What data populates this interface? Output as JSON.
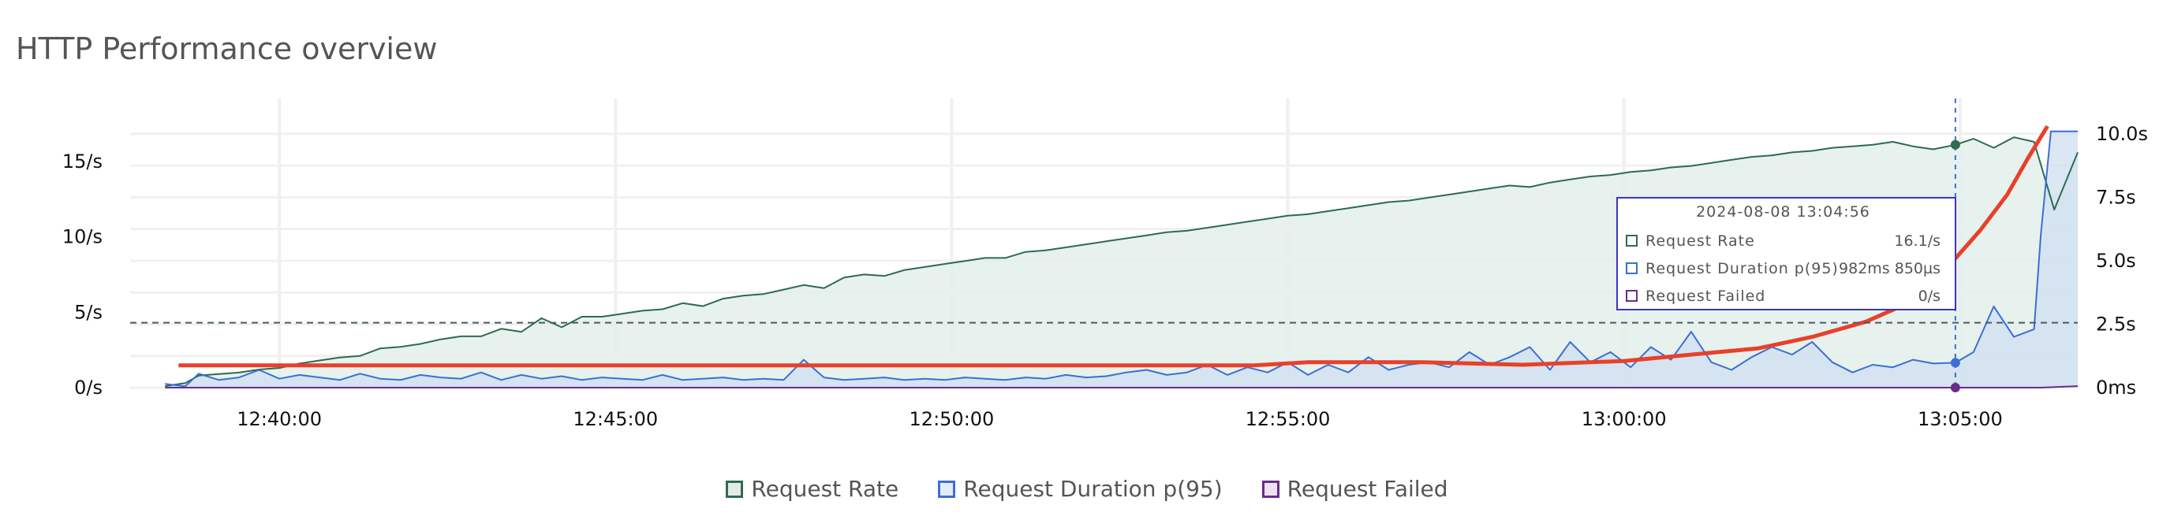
{
  "page": {
    "title": "HTTP Performance overview"
  },
  "legend": [
    {
      "label": "Request Rate",
      "color": "#2e6b4f"
    },
    {
      "label": "Request Duration p(95)",
      "color": "#3b6fd4"
    },
    {
      "label": "Request Failed",
      "color": "#6a2c8a"
    }
  ],
  "tooltip": {
    "timestamp": "2024-08-08 13:04:56",
    "rows": [
      {
        "label": "Request Rate",
        "value": "16.1/s",
        "color": "#2e6b4f"
      },
      {
        "label": "Request Duration p(95)",
        "value": "982ms 850µs",
        "color": "#3b6fd4"
      },
      {
        "label": "Request Failed",
        "value": "0/s",
        "color": "#6a2c8a"
      }
    ]
  },
  "chart_data": {
    "type": "area",
    "x_ticks": [
      "12:40:00",
      "12:45:00",
      "12:50:00",
      "12:55:00",
      "13:00:00",
      "13:05:00"
    ],
    "y_left_ticks": [
      "0/s",
      "5/s",
      "10/s",
      "15/s"
    ],
    "y_right_ticks": [
      "0ms",
      "2.5s",
      "5.0s",
      "7.5s",
      "10.0s"
    ],
    "y_left_range": [
      0,
      17.5
    ],
    "y_right_range": [
      0,
      10.4
    ],
    "x_range_minutes": [
      -1.75,
      26.75
    ],
    "x_origin": "12:40:00",
    "threshold_left": 4.3,
    "hover_time_minutes": 24.93,
    "series": [
      {
        "name": "Request Rate",
        "color": "#2e6b4f",
        "fill": "#e3efea",
        "axis": "left",
        "x": [
          -1.7,
          -1.4,
          -1.2,
          -0.9,
          -0.6,
          -0.3,
          0,
          0.3,
          0.6,
          0.9,
          1.2,
          1.5,
          1.8,
          2.1,
          2.4,
          2.7,
          3.0,
          3.3,
          3.6,
          3.9,
          4.2,
          4.5,
          4.8,
          5.1,
          5.4,
          5.7,
          6.0,
          6.3,
          6.6,
          6.9,
          7.2,
          7.5,
          7.8,
          8.1,
          8.4,
          8.7,
          9.0,
          9.3,
          9.6,
          9.9,
          10.2,
          10.5,
          10.8,
          11.1,
          11.4,
          11.7,
          12.0,
          12.3,
          12.6,
          12.9,
          13.2,
          13.5,
          13.8,
          14.1,
          14.4,
          14.7,
          15.0,
          15.3,
          15.6,
          15.9,
          16.2,
          16.5,
          16.8,
          17.1,
          17.4,
          17.7,
          18.0,
          18.3,
          18.6,
          18.9,
          19.2,
          19.5,
          19.8,
          20.1,
          20.4,
          20.7,
          21.0,
          21.3,
          21.6,
          21.9,
          22.2,
          22.5,
          22.8,
          23.1,
          23.4,
          23.7,
          24.0,
          24.3,
          24.6,
          24.93,
          25.2,
          25.5,
          25.8,
          26.1,
          26.4,
          26.75
        ],
        "values": [
          0.1,
          0.3,
          0.8,
          0.9,
          1.0,
          1.2,
          1.3,
          1.6,
          1.8,
          2.0,
          2.1,
          2.6,
          2.7,
          2.9,
          3.2,
          3.4,
          3.4,
          3.9,
          3.7,
          4.6,
          4.0,
          4.7,
          4.7,
          4.9,
          5.1,
          5.2,
          5.6,
          5.4,
          5.9,
          6.1,
          6.2,
          6.5,
          6.8,
          6.6,
          7.3,
          7.5,
          7.4,
          7.8,
          8.0,
          8.2,
          8.4,
          8.6,
          8.6,
          9.0,
          9.1,
          9.3,
          9.5,
          9.7,
          9.9,
          10.1,
          10.3,
          10.4,
          10.6,
          10.8,
          11.0,
          11.2,
          11.4,
          11.5,
          11.7,
          11.9,
          12.1,
          12.3,
          12.4,
          12.6,
          12.8,
          13.0,
          13.2,
          13.4,
          13.3,
          13.6,
          13.8,
          14.0,
          14.1,
          14.3,
          14.4,
          14.6,
          14.7,
          14.9,
          15.1,
          15.3,
          15.4,
          15.6,
          15.7,
          15.9,
          16.0,
          16.1,
          16.3,
          16.0,
          15.8,
          16.1,
          16.5,
          15.9,
          16.6,
          16.3,
          11.8,
          15.6
        ]
      },
      {
        "name": "Request Duration p(95)",
        "color": "#3b6fd4",
        "fill": "#cfdff0",
        "axis": "right",
        "x": [
          -1.7,
          -1.4,
          -1.2,
          -0.9,
          -0.6,
          -0.3,
          0,
          0.3,
          0.6,
          0.9,
          1.2,
          1.5,
          1.8,
          2.1,
          2.4,
          2.7,
          3.0,
          3.3,
          3.6,
          3.9,
          4.2,
          4.5,
          4.8,
          5.1,
          5.4,
          5.7,
          6.0,
          6.3,
          6.6,
          6.9,
          7.2,
          7.5,
          7.8,
          8.1,
          8.4,
          8.7,
          9.0,
          9.3,
          9.6,
          9.9,
          10.2,
          10.5,
          10.8,
          11.1,
          11.4,
          11.7,
          12.0,
          12.3,
          12.6,
          12.9,
          13.2,
          13.5,
          13.8,
          14.1,
          14.4,
          14.7,
          15.0,
          15.3,
          15.6,
          15.9,
          16.2,
          16.5,
          16.8,
          17.1,
          17.4,
          17.7,
          18.0,
          18.3,
          18.6,
          18.9,
          19.2,
          19.5,
          19.8,
          20.1,
          20.4,
          20.7,
          21.0,
          21.3,
          21.6,
          21.9,
          22.2,
          22.5,
          22.8,
          23.1,
          23.4,
          23.7,
          24.0,
          24.3,
          24.6,
          24.93,
          25.2,
          25.5,
          25.8,
          26.1,
          26.2,
          26.35,
          26.75
        ],
        "values": [
          0.15,
          0.05,
          0.55,
          0.3,
          0.4,
          0.7,
          0.35,
          0.5,
          0.4,
          0.3,
          0.55,
          0.35,
          0.3,
          0.5,
          0.4,
          0.35,
          0.6,
          0.3,
          0.5,
          0.35,
          0.45,
          0.3,
          0.4,
          0.35,
          0.3,
          0.5,
          0.3,
          0.35,
          0.4,
          0.3,
          0.35,
          0.3,
          1.1,
          0.4,
          0.3,
          0.35,
          0.4,
          0.3,
          0.35,
          0.3,
          0.4,
          0.35,
          0.3,
          0.4,
          0.35,
          0.5,
          0.4,
          0.45,
          0.6,
          0.7,
          0.5,
          0.6,
          0.9,
          0.5,
          0.8,
          0.6,
          1.0,
          0.5,
          0.9,
          0.6,
          1.2,
          0.7,
          0.9,
          1.0,
          0.8,
          1.4,
          0.9,
          1.2,
          1.6,
          0.7,
          1.8,
          1.0,
          1.4,
          0.8,
          1.6,
          1.1,
          2.2,
          1.0,
          0.7,
          1.2,
          1.6,
          1.3,
          1.8,
          1.0,
          0.6,
          0.9,
          0.8,
          1.1,
          0.95,
          0.98,
          1.4,
          3.2,
          2.0,
          2.3,
          6.0,
          10.1,
          10.1
        ]
      },
      {
        "name": "Request Failed",
        "color": "#6a2c8a",
        "fill": "none",
        "axis": "left",
        "x": [
          -1.7,
          24.93,
          26.2,
          26.75
        ],
        "values": [
          0,
          0,
          0,
          0.1
        ]
      },
      {
        "name": "",
        "color": "#e8402a",
        "fill": "none",
        "axis": "right",
        "x": [
          -1.5,
          0,
          3,
          6,
          9,
          12,
          14.5,
          15.3,
          17,
          18.5,
          20,
          21,
          22,
          22.8,
          23.6,
          24.2,
          24.8,
          25.3,
          25.7,
          26.0,
          26.3
        ],
        "values": [
          0.88,
          0.88,
          0.88,
          0.88,
          0.88,
          0.88,
          0.88,
          1.0,
          1.0,
          0.9,
          1.05,
          1.3,
          1.55,
          2.0,
          2.6,
          3.3,
          4.7,
          6.2,
          7.6,
          9.0,
          10.3
        ]
      }
    ]
  }
}
